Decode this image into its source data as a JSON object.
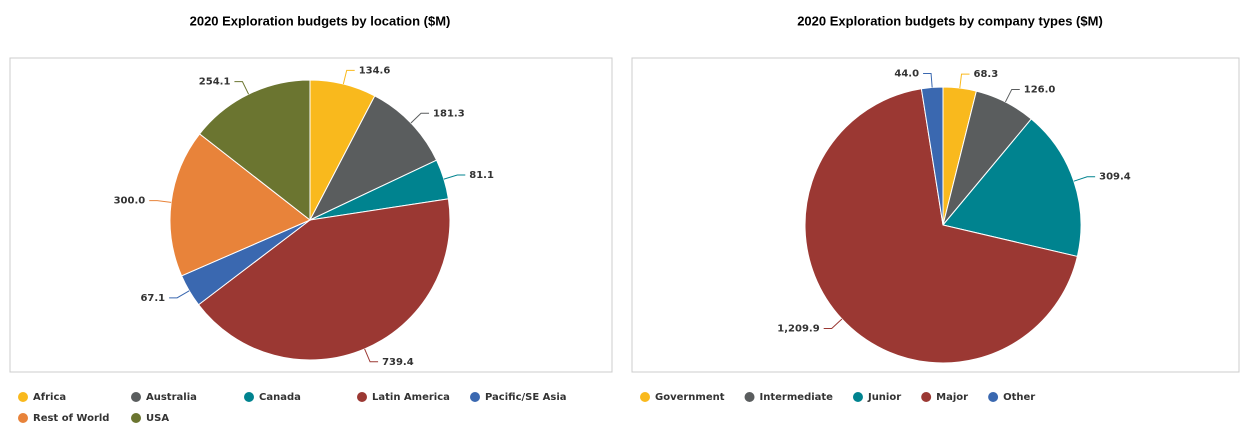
{
  "chart_data": [
    {
      "type": "pie",
      "title": "2020 Exploration budgets by location ($M)",
      "categories": [
        "Africa",
        "Australia",
        "Canada",
        "Latin America",
        "Pacific/SE Asia",
        "Rest of World",
        "USA"
      ],
      "values": [
        134.6,
        181.3,
        81.1,
        739.4,
        67.1,
        300.0,
        254.1
      ],
      "value_labels": [
        "134.6",
        "181.3",
        "81.1",
        "739.4",
        "67.1",
        "300.0",
        "254.1"
      ],
      "colors": [
        "#f9b91d",
        "#5a5d5e",
        "#00838f",
        "#9b3833",
        "#3a68b0",
        "#e8833a",
        "#6b7530"
      ],
      "legend": "bottom"
    },
    {
      "type": "pie",
      "title": "2020 Exploration budgets by company types ($M)",
      "categories": [
        "Government",
        "Intermediate",
        "Junior",
        "Major",
        "Other"
      ],
      "values": [
        68.3,
        126.0,
        309.4,
        1209.9,
        44.0
      ],
      "value_labels": [
        "68.3",
        "126.0",
        "309.4",
        "1,209.9",
        "44.0"
      ],
      "colors": [
        "#f9b91d",
        "#5a5d5e",
        "#00838f",
        "#9b3833",
        "#3a68b0"
      ],
      "legend": "bottom"
    }
  ]
}
